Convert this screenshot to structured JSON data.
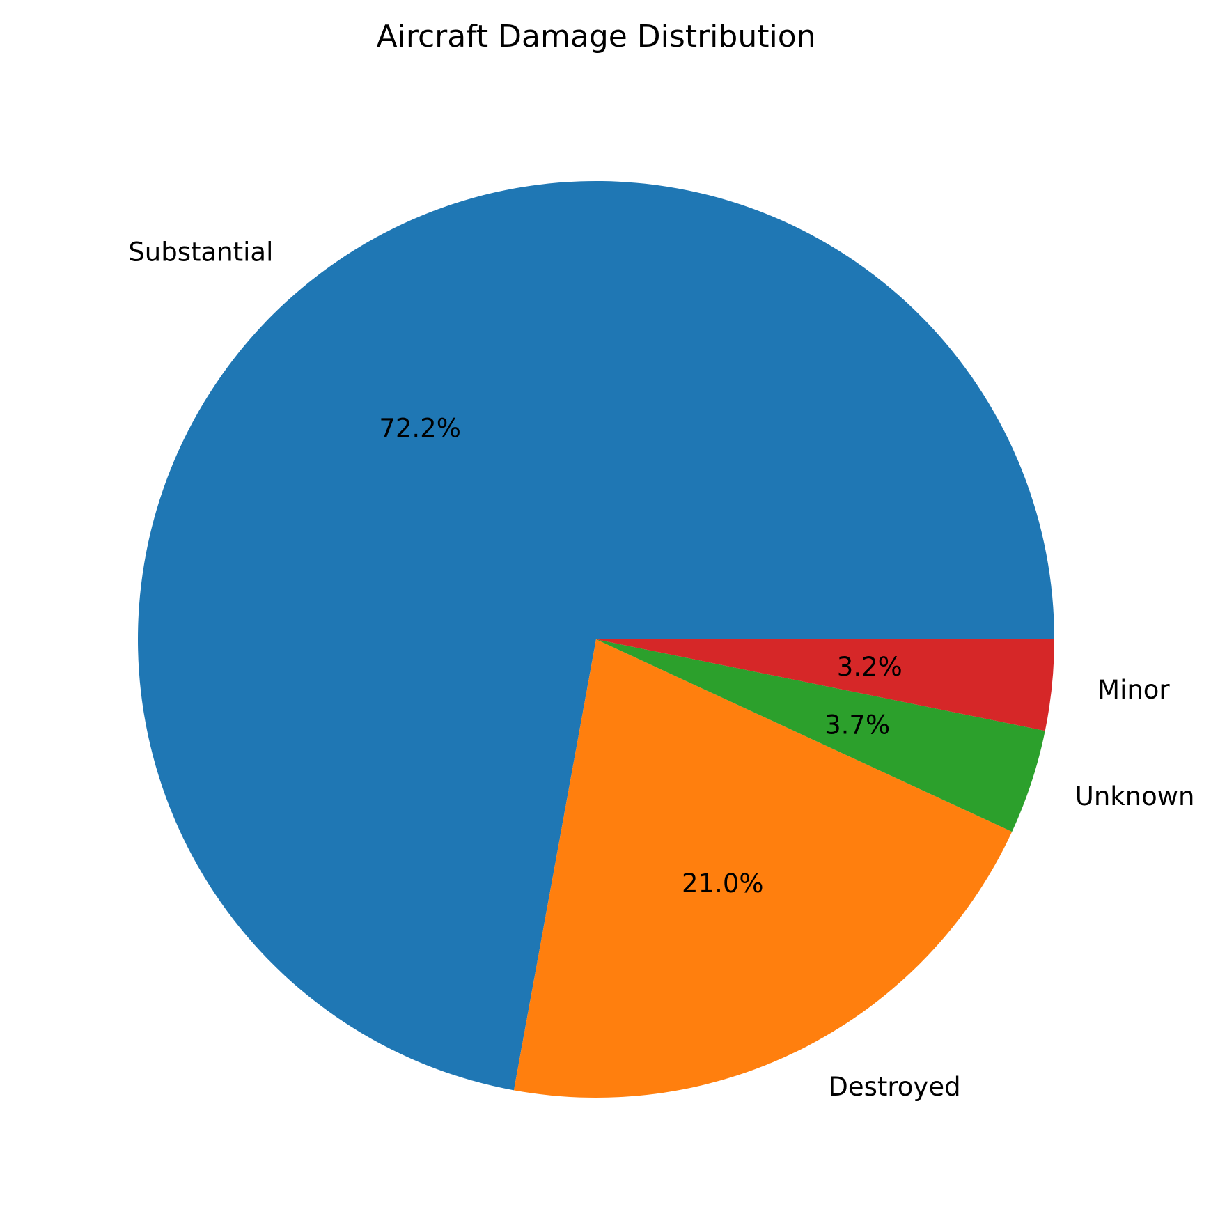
{
  "chart_data": {
    "type": "pie",
    "title": "Aircraft Damage Distribution",
    "start_angle_deg": 0,
    "direction": "counterclockwise",
    "slices": [
      {
        "label": "Substantial",
        "value": 72.2,
        "pct_label": "72.2%",
        "color": "#1f77b4"
      },
      {
        "label": "Destroyed",
        "value": 21.0,
        "pct_label": "21.0%",
        "color": "#ff7f0e"
      },
      {
        "label": "Unknown",
        "value": 3.7,
        "pct_label": "3.7%",
        "color": "#2ca02c"
      },
      {
        "label": "Minor",
        "value": 3.2,
        "pct_label": "3.2%",
        "color": "#d62728"
      }
    ]
  }
}
